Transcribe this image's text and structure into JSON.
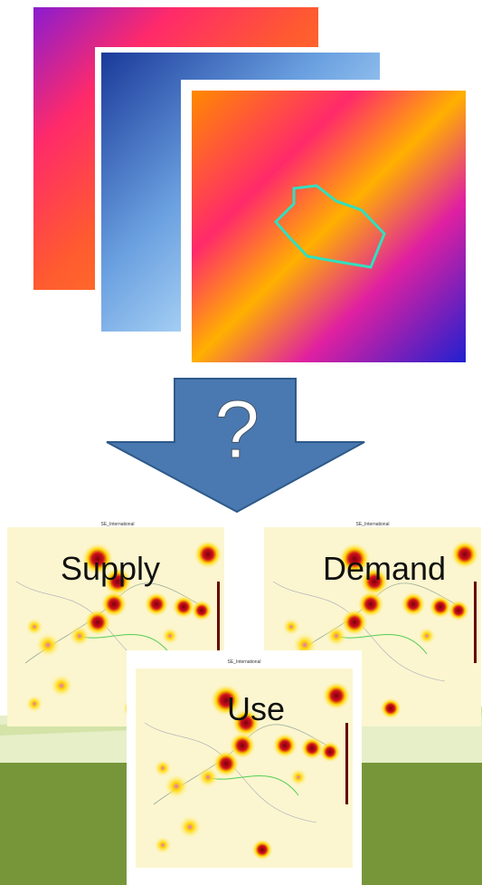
{
  "arrow": {
    "label": "?"
  },
  "panels": [
    {
      "title": "SE_International",
      "label": "Supply"
    },
    {
      "title": "SE_International",
      "label": "Demand"
    },
    {
      "title": "SE_International",
      "label": "Use"
    }
  ]
}
